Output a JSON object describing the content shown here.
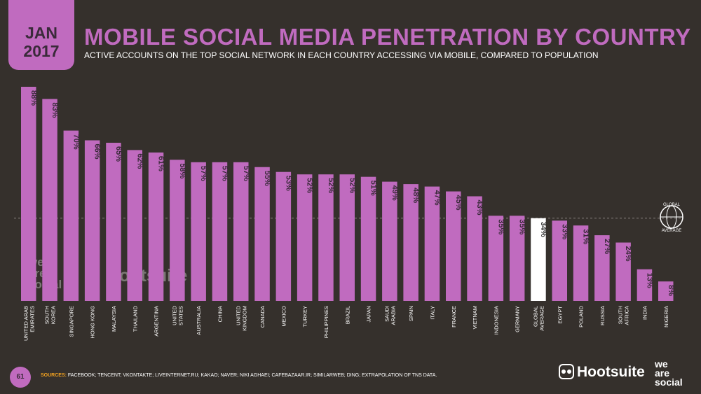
{
  "header": {
    "month": "JAN",
    "year": "2017",
    "title": "MOBILE SOCIAL MEDIA PENETRATION BY COUNTRY",
    "subtitle": "ACTIVE ACCOUNTS ON THE TOP SOCIAL NETWORK IN EACH COUNTRY ACCESSING VIA MOBILE, COMPARED TO POPULATION"
  },
  "colors": {
    "background": "#35302c",
    "accent": "#c06bbf",
    "highlight_bar": "#ffffff",
    "sources_label": "#f0a020"
  },
  "chart_data": {
    "type": "bar",
    "categories": [
      [
        "UNITED ARAB",
        "EMIRATES"
      ],
      [
        "SOUTH",
        "KOREA"
      ],
      [
        "SINGAPORE"
      ],
      [
        "HONG KONG"
      ],
      [
        "MALAYSIA"
      ],
      [
        "THAILAND"
      ],
      [
        "ARGENTINA"
      ],
      [
        "UNITED",
        "STATES"
      ],
      [
        "AUSTRALIA"
      ],
      [
        "CHINA"
      ],
      [
        "UNITED",
        "KINGDOM"
      ],
      [
        "CANADA"
      ],
      [
        "MEXICO"
      ],
      [
        "TURKEY"
      ],
      [
        "PHILIPPINES"
      ],
      [
        "BRAZIL"
      ],
      [
        "JAPAN"
      ],
      [
        "SAUDI",
        "ARABIA"
      ],
      [
        "SPAIN"
      ],
      [
        "ITALY"
      ],
      [
        "FRANCE"
      ],
      [
        "VIETNAM"
      ],
      [
        "INDONESIA"
      ],
      [
        "GERMANY"
      ],
      [
        "GLOBAL",
        "AVERAGE"
      ],
      [
        "EGYPT"
      ],
      [
        "POLAND"
      ],
      [
        "RUSSIA"
      ],
      [
        "SOUTH",
        "AFRICA"
      ],
      [
        "INDIA"
      ],
      [
        "NIGERIA"
      ]
    ],
    "values": [
      88,
      83,
      70,
      66,
      65,
      62,
      61,
      58,
      57,
      57,
      57,
      55,
      53,
      52,
      52,
      52,
      51,
      49,
      48,
      47,
      45,
      43,
      35,
      35,
      34,
      33,
      31,
      27,
      24,
      13,
      8
    ],
    "labels": [
      "88%",
      "83%",
      "70%",
      "66%",
      "65%",
      "62%",
      "61%",
      "58%",
      "57%",
      "57%",
      "57%",
      "55%",
      "53%",
      "52%",
      "52%",
      "52%",
      "51%",
      "49%",
      "48%",
      "47%",
      "45%",
      "43%",
      "35%",
      "35%",
      "34%",
      "33%",
      "31%",
      "27%",
      "24%",
      "13%",
      "8%"
    ],
    "highlight_index": 24,
    "reference_line": {
      "value": 34,
      "label": [
        "GLOBAL",
        "AVERAGE"
      ]
    },
    "ylim": [
      0,
      88
    ],
    "grid": false
  },
  "watermark": {
    "line1": "we",
    "line2": "are",
    "line3": "social",
    "brand": "Hootsuite"
  },
  "footer": {
    "page_number": "61",
    "sources_label": "SOURCES:",
    "sources_text": "FACEBOOK; TENCENT; VKONTAKTE; LIVEINTERNET.RU; KAKAO; NAVER; NIKI AGHAEI; CAFEBAZAAR.IR; SIMILARWEB; DING; EXTRAPOLATION OF TNS DATA.",
    "hootsuite_logo": "Hootsuite",
    "was_line1": "we",
    "was_line2": "are",
    "was_line3": "social"
  }
}
